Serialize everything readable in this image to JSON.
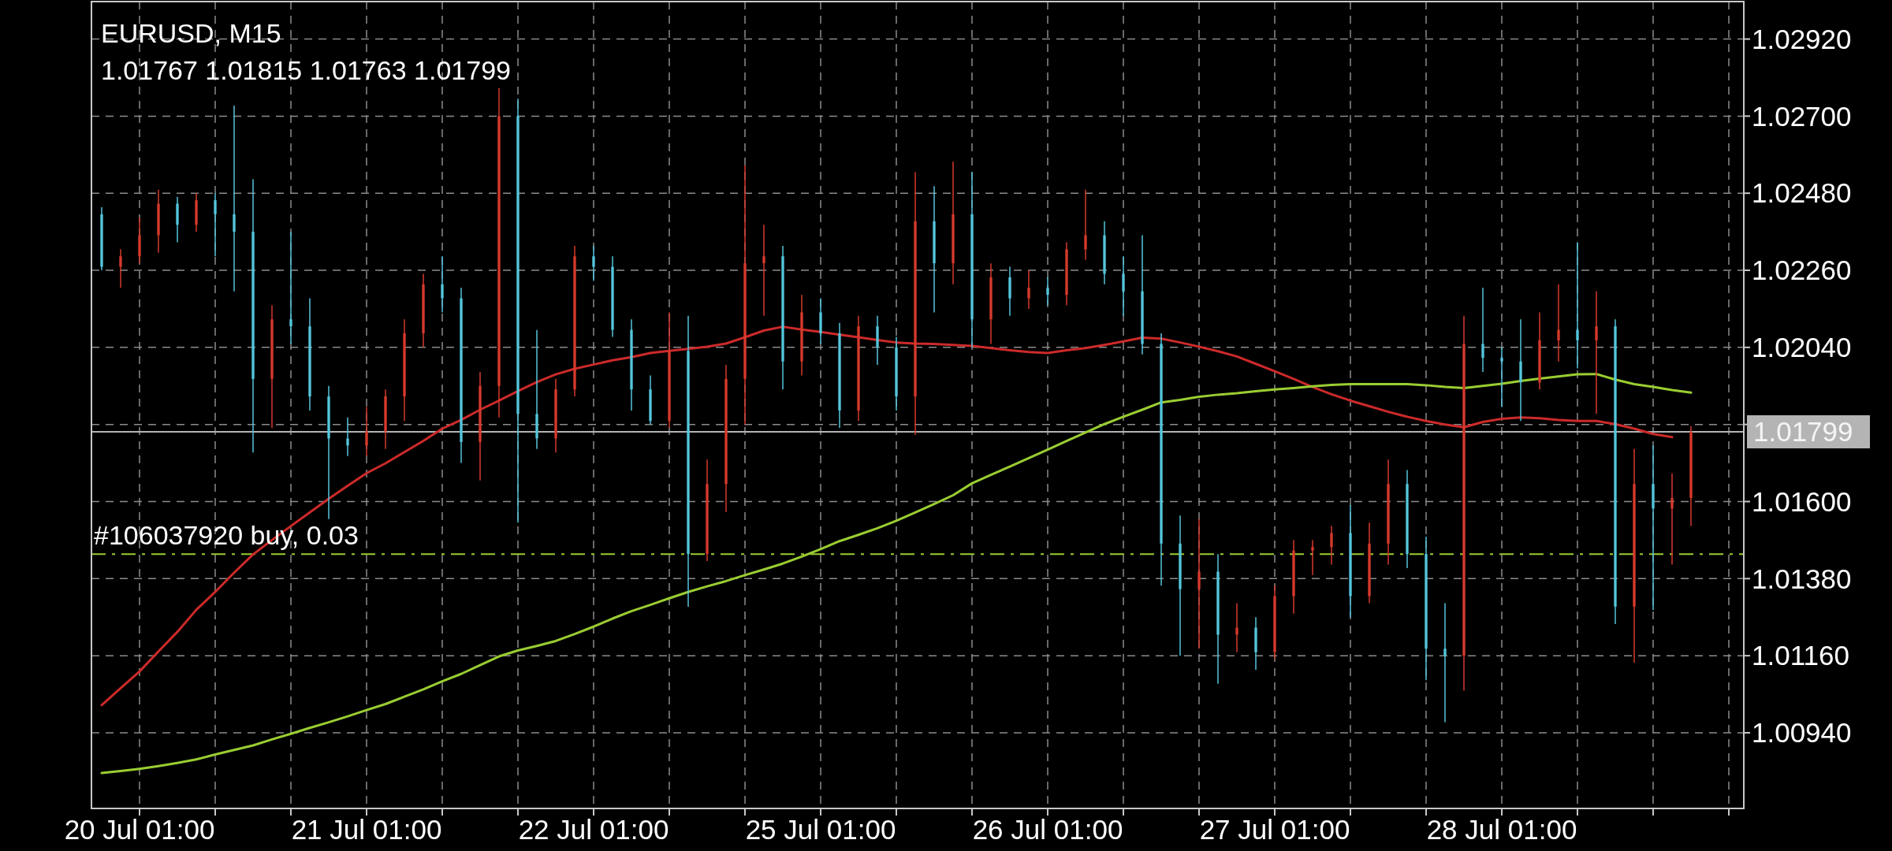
{
  "chart_data": {
    "type": "candlestick",
    "title": "EURUSD, M15",
    "subtitle": "1.01767 1.01815 1.01763 1.01799",
    "categories": [
      null,
      null,
      "20 Jul 01:00",
      null,
      null,
      null,
      null,
      null,
      null,
      null,
      null,
      null,
      null,
      null,
      "21 Jul 01:00",
      null,
      null,
      null,
      null,
      null,
      null,
      null,
      null,
      null,
      null,
      null,
      "22 Jul 01:00",
      null,
      null,
      null,
      null,
      null,
      null,
      null,
      null,
      null,
      null,
      null,
      "25 Jul 01:00",
      null,
      null,
      null,
      null,
      null,
      null,
      null,
      null,
      null,
      null,
      null,
      "26 Jul 01:00",
      null,
      null,
      null,
      null,
      null,
      null,
      null,
      null,
      null,
      null,
      null,
      "27 Jul 01:00",
      null,
      null,
      null,
      null,
      null,
      null,
      null,
      null,
      null,
      null,
      null,
      "28 Jul 01:00",
      null,
      null,
      null,
      null,
      null,
      null,
      null,
      null,
      null,
      null
    ],
    "ohlc": [
      [
        1.0242,
        1.0244,
        1.0226,
        1.0227
      ],
      [
        1.0227,
        1.0232,
        1.0221,
        1.023
      ],
      [
        1.023,
        1.0241,
        1.0228,
        1.0236
      ],
      [
        1.0236,
        1.0249,
        1.0231,
        1.0245
      ],
      [
        1.0245,
        1.0247,
        1.0234,
        1.0239
      ],
      [
        1.0239,
        1.0248,
        1.0237,
        1.0246
      ],
      [
        1.0246,
        1.0248,
        1.023,
        1.0242
      ],
      [
        1.0242,
        1.0273,
        1.022,
        1.0237
      ],
      [
        1.0237,
        1.0252,
        1.0174,
        1.0195
      ],
      [
        1.0195,
        1.0216,
        1.0181,
        1.0212
      ],
      [
        1.0212,
        1.0237,
        1.0205,
        1.021
      ],
      [
        1.021,
        1.0218,
        1.0186,
        1.019
      ],
      [
        1.019,
        1.0193,
        1.0155,
        1.0178
      ],
      [
        1.0178,
        1.0184,
        1.0173,
        1.0176
      ],
      [
        1.0176,
        1.0187,
        1.0173,
        1.018
      ],
      [
        1.018,
        1.0192,
        1.0175,
        1.019
      ],
      [
        1.019,
        1.0212,
        1.0183,
        1.0208
      ],
      [
        1.0208,
        1.0225,
        1.0204,
        1.0222
      ],
      [
        1.0222,
        1.023,
        1.0214,
        1.0218
      ],
      [
        1.0218,
        1.0221,
        1.0171,
        1.0177
      ],
      [
        1.0177,
        1.0197,
        1.0166,
        1.0193
      ],
      [
        1.0193,
        1.0278,
        1.0184,
        1.027
      ],
      [
        1.027,
        1.0275,
        1.0154,
        1.0185
      ],
      [
        1.0185,
        1.0209,
        1.0175,
        1.0178
      ],
      [
        1.0178,
        1.0195,
        1.0174,
        1.0192
      ],
      [
        1.0192,
        1.0233,
        1.019,
        1.023
      ],
      [
        1.023,
        1.0233,
        1.0223,
        1.0227
      ],
      [
        1.0227,
        1.023,
        1.0207,
        1.0209
      ],
      [
        1.0209,
        1.0212,
        1.0186,
        1.0192
      ],
      [
        1.0192,
        1.0196,
        1.0182,
        1.0183
      ],
      [
        1.0183,
        1.0214,
        1.0181,
        1.0203
      ],
      [
        1.0203,
        1.0213,
        1.013,
        1.0145
      ],
      [
        1.0145,
        1.0172,
        1.0143,
        1.0165
      ],
      [
        1.0165,
        1.0199,
        1.0157,
        1.0195
      ],
      [
        1.0195,
        1.0256,
        1.0182,
        1.0228
      ],
      [
        1.0228,
        1.0239,
        1.0213,
        1.023
      ],
      [
        1.023,
        1.0233,
        1.0192,
        1.02
      ],
      [
        1.02,
        1.0219,
        1.0196,
        1.0214
      ],
      [
        1.0214,
        1.0218,
        1.0205,
        1.0208
      ],
      [
        1.0208,
        1.0211,
        1.0181,
        1.0186
      ],
      [
        1.0186,
        1.0213,
        1.0183,
        1.021
      ],
      [
        1.021,
        1.0213,
        1.0199,
        1.0204
      ],
      [
        1.0204,
        1.0207,
        1.0186,
        1.019
      ],
      [
        1.019,
        1.0254,
        1.0179,
        1.024
      ],
      [
        1.024,
        1.025,
        1.0214,
        1.0228
      ],
      [
        1.0228,
        1.0257,
        1.0222,
        1.0242
      ],
      [
        1.0242,
        1.0254,
        1.0204,
        1.0212
      ],
      [
        1.0212,
        1.0228,
        1.0205,
        1.0224
      ],
      [
        1.0224,
        1.0227,
        1.0213,
        1.0218
      ],
      [
        1.0218,
        1.0226,
        1.0215,
        1.0221
      ],
      [
        1.0221,
        1.0224,
        1.0216,
        1.0219
      ],
      [
        1.0219,
        1.0234,
        1.0216,
        1.0232
      ],
      [
        1.0232,
        1.0249,
        1.0229,
        1.0236
      ],
      [
        1.0236,
        1.024,
        1.0222,
        1.0225
      ],
      [
        1.0225,
        1.023,
        1.0213,
        1.022
      ],
      [
        1.022,
        1.0236,
        1.0202,
        1.0205
      ],
      [
        1.0205,
        1.0208,
        1.0136,
        1.0148
      ],
      [
        1.0148,
        1.0156,
        1.0116,
        1.0135
      ],
      [
        1.0135,
        1.0155,
        1.0118,
        1.014
      ],
      [
        1.014,
        1.0145,
        1.0108,
        1.0122
      ],
      [
        1.0122,
        1.0131,
        1.0117,
        1.0124
      ],
      [
        1.0124,
        1.0127,
        1.0112,
        1.0117
      ],
      [
        1.0117,
        1.0136,
        1.0115,
        1.0133
      ],
      [
        1.0133,
        1.0149,
        1.0128,
        1.0146
      ],
      [
        1.0146,
        1.0149,
        1.0139,
        1.0147
      ],
      [
        1.0147,
        1.0153,
        1.0142,
        1.0151
      ],
      [
        1.0151,
        1.0159,
        1.0127,
        1.0133
      ],
      [
        1.0133,
        1.0154,
        1.0131,
        1.0148
      ],
      [
        1.0148,
        1.0172,
        1.0142,
        1.0165
      ],
      [
        1.0165,
        1.0169,
        1.0141,
        1.0145
      ],
      [
        1.0145,
        1.015,
        1.0109,
        1.0118
      ],
      [
        1.0118,
        1.0131,
        1.0097,
        1.0116
      ],
      [
        1.0116,
        1.0213,
        1.0106,
        1.0205
      ],
      [
        1.0205,
        1.0221,
        1.0197,
        1.0201
      ],
      [
        1.0201,
        1.0204,
        1.0187,
        1.02
      ],
      [
        1.02,
        1.0212,
        1.0183,
        1.0194
      ],
      [
        1.0194,
        1.0214,
        1.0192,
        1.0206
      ],
      [
        1.0206,
        1.0222,
        1.02,
        1.0209
      ],
      [
        1.0209,
        1.0234,
        1.0198,
        1.0206
      ],
      [
        1.0206,
        1.022,
        1.0185,
        1.021
      ],
      [
        1.021,
        1.0212,
        1.0125,
        1.013
      ],
      [
        1.013,
        1.0175,
        1.0114,
        1.0165
      ],
      [
        1.0165,
        1.0176,
        1.0129,
        1.0158
      ],
      [
        1.0158,
        1.0168,
        1.0142,
        1.0161
      ],
      [
        1.0161,
        1.01815,
        1.0153,
        1.01799
      ]
    ],
    "colors": [
      "#54c6dc",
      "#d63a2c",
      "#d63a2c",
      "#d63a2c",
      "#54c6dc",
      "#d63a2c",
      "#54c6dc",
      "#54c6dc",
      "#54c6dc",
      "#d63a2c",
      "#54c6dc",
      "#54c6dc",
      "#54c6dc",
      "#54c6dc",
      "#d63a2c",
      "#d63a2c",
      "#d63a2c",
      "#d63a2c",
      "#54c6dc",
      "#54c6dc",
      "#d63a2c",
      "#d63a2c",
      "#54c6dc",
      "#54c6dc",
      "#d63a2c",
      "#d63a2c",
      "#54c6dc",
      "#54c6dc",
      "#54c6dc",
      "#54c6dc",
      "#d63a2c",
      "#54c6dc",
      "#d63a2c",
      "#d63a2c",
      "#d63a2c",
      "#d63a2c",
      "#54c6dc",
      "#d63a2c",
      "#54c6dc",
      "#54c6dc",
      "#d63a2c",
      "#54c6dc",
      "#54c6dc",
      "#d63a2c",
      "#54c6dc",
      "#d63a2c",
      "#54c6dc",
      "#d63a2c",
      "#54c6dc",
      "#d63a2c",
      "#54c6dc",
      "#d63a2c",
      "#d63a2c",
      "#54c6dc",
      "#54c6dc",
      "#54c6dc",
      "#54c6dc",
      "#54c6dc",
      "#d63a2c",
      "#54c6dc",
      "#d63a2c",
      "#54c6dc",
      "#d63a2c",
      "#d63a2c",
      "#d63a2c",
      "#d63a2c",
      "#54c6dc",
      "#d63a2c",
      "#d63a2c",
      "#54c6dc",
      "#54c6dc",
      "#54c6dc",
      "#d63a2c",
      "#54c6dc",
      "#54c6dc",
      "#54c6dc",
      "#d63a2c",
      "#d63a2c",
      "#54c6dc",
      "#d63a2c",
      "#54c6dc",
      "#d63a2c",
      "#54c6dc",
      "#d63a2c",
      "#d63a2c"
    ],
    "series": [
      {
        "type": "line",
        "color": "#cc2a2a",
        "values": [
          1.01019,
          1.01067,
          1.01115,
          1.01172,
          1.01228,
          1.01291,
          1.01342,
          1.01397,
          1.01449,
          1.0149,
          1.0153,
          1.01569,
          1.01608,
          1.01645,
          1.01681,
          1.01709,
          1.01741,
          1.01773,
          1.01808,
          1.01833,
          1.01862,
          1.01888,
          1.01915,
          1.01941,
          1.01963,
          1.01979,
          1.01991,
          1.02003,
          1.02012,
          1.02024,
          1.0203,
          1.02036,
          1.02042,
          1.02051,
          1.02069,
          1.02088,
          1.02099,
          1.02091,
          1.02084,
          1.02076,
          1.02069,
          1.02061,
          1.02054,
          1.02051,
          1.0205,
          1.02047,
          1.02044,
          1.02038,
          1.02032,
          1.02027,
          1.02024,
          1.02032,
          1.02038,
          1.02047,
          1.02057,
          1.02068,
          1.02065,
          1.02054,
          1.02042,
          1.02029,
          1.02014,
          1.01993,
          1.01972,
          1.0195,
          1.01927,
          1.01906,
          1.01888,
          1.01872,
          1.01856,
          1.01842,
          1.0183,
          1.0182,
          1.01812,
          1.01827,
          1.01836,
          1.0184,
          1.01838,
          1.01833,
          1.0183,
          1.0183,
          1.01821,
          1.01808,
          1.01793,
          1.01784,
          null
        ]
      },
      {
        "type": "line",
        "color": "#9acd32",
        "values": [
          1.00825,
          1.00831,
          1.00837,
          1.00845,
          1.00854,
          1.00864,
          1.00878,
          1.00891,
          1.00904,
          1.00921,
          1.00937,
          1.00954,
          1.0097,
          1.00987,
          1.01005,
          1.01022,
          1.01043,
          1.01064,
          1.01087,
          1.01108,
          1.01133,
          1.01158,
          1.01175,
          1.01188,
          1.01202,
          1.01222,
          1.01243,
          1.01266,
          1.01287,
          1.01305,
          1.01324,
          1.01342,
          1.01358,
          1.01373,
          1.0139,
          1.01406,
          1.01423,
          1.01443,
          1.01464,
          1.01487,
          1.01505,
          1.01524,
          1.01545,
          1.01569,
          1.01593,
          1.01618,
          1.01652,
          1.01676,
          1.017,
          1.01724,
          1.01748,
          1.01773,
          1.01797,
          1.01821,
          1.01842,
          1.01862,
          1.01883,
          1.0189,
          1.01899,
          1.01905,
          1.01909,
          1.01915,
          1.0192,
          1.01924,
          1.01929,
          1.01933,
          1.01935,
          1.01935,
          1.01935,
          1.01935,
          1.01932,
          1.01927,
          1.01924,
          1.0193,
          1.01936,
          1.01944,
          1.01951,
          1.01957,
          1.01963,
          1.01964,
          1.01948,
          1.01935,
          1.01927,
          1.01918,
          1.01911
        ]
      }
    ],
    "ylim": [
      1.00724,
      1.03027
    ],
    "yticks": [
      {
        "value": 1.0094,
        "label": "1.00940"
      },
      {
        "value": 1.0116,
        "label": "1.01160"
      },
      {
        "value": 1.0138,
        "label": "1.01380"
      },
      {
        "value": 1.016,
        "label": "1.01600"
      },
      {
        "value": 1.0182,
        "label": null
      },
      {
        "value": 1.0204,
        "label": "1.02040"
      },
      {
        "value": 1.0226,
        "label": "1.02260"
      },
      {
        "value": 1.0248,
        "label": "1.02480"
      },
      {
        "value": 1.027,
        "label": "1.02700"
      },
      {
        "value": 1.0292,
        "label": "1.02920"
      }
    ],
    "grid": true,
    "ref_lines": [
      {
        "axis": "y",
        "value": 1.01799,
        "label": "1.01799",
        "color": "#b4b4b4",
        "line_style": "solid"
      },
      {
        "axis": "y",
        "value": 1.0145,
        "label": "#106037920 buy, 0.03",
        "color": "#9acd32",
        "line_style": "dashed"
      }
    ]
  }
}
